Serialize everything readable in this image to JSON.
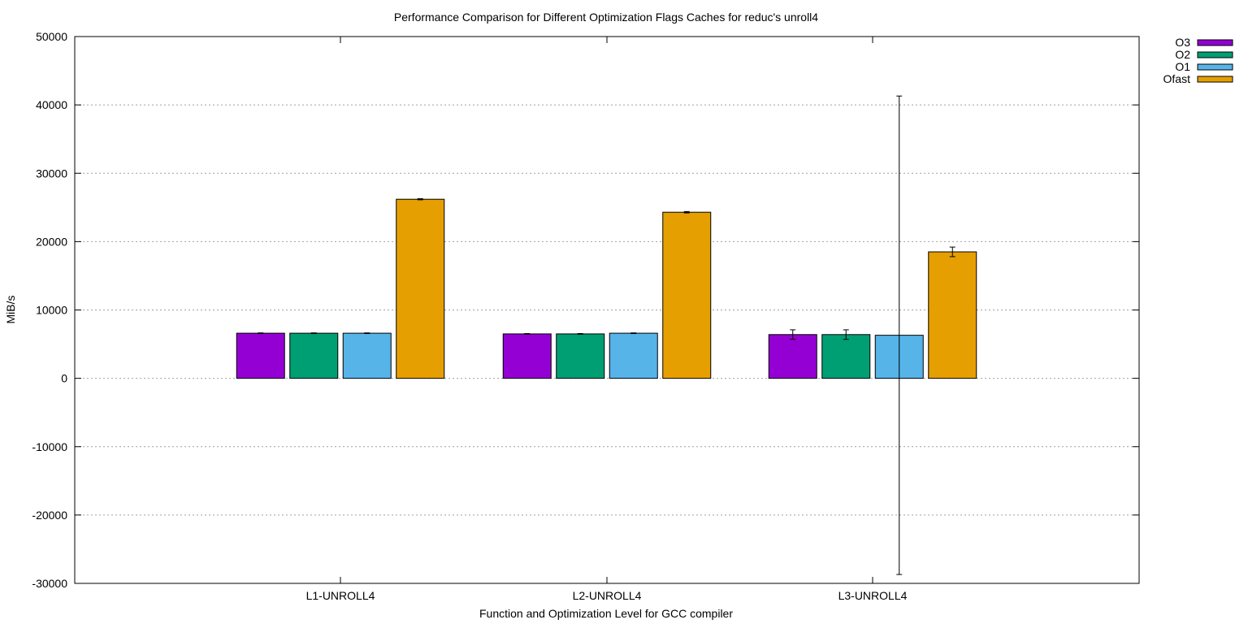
{
  "chart_data": {
    "type": "bar",
    "title": "Performance Comparison for Different Optimization Flags  Caches for reduc's unroll4",
    "xlabel": "Function and Optimization Level for GCC compiler",
    "ylabel": "MiB/s",
    "ylim": [
      -30000,
      50000
    ],
    "yticks": [
      -30000,
      -20000,
      -10000,
      0,
      10000,
      20000,
      30000,
      40000,
      50000
    ],
    "grid": true,
    "legend_position": "top-right-outside",
    "categories": [
      "L1-UNROLL4",
      "L2-UNROLL4",
      "L3-UNROLL4"
    ],
    "series": [
      {
        "name": "O3",
        "color": "#9400d3",
        "values": [
          6600,
          6500,
          6400
        ],
        "errors": [
          50,
          50,
          700
        ]
      },
      {
        "name": "O2",
        "color": "#009e73",
        "values": [
          6600,
          6500,
          6400
        ],
        "errors": [
          50,
          50,
          700
        ]
      },
      {
        "name": "O1",
        "color": "#56b4e9",
        "values": [
          6600,
          6600,
          6300
        ],
        "errors": [
          50,
          50,
          35000
        ]
      },
      {
        "name": "Ofast",
        "color": "#e69f00",
        "values": [
          26200,
          24300,
          18500
        ],
        "errors": [
          80,
          100,
          700
        ]
      }
    ]
  }
}
